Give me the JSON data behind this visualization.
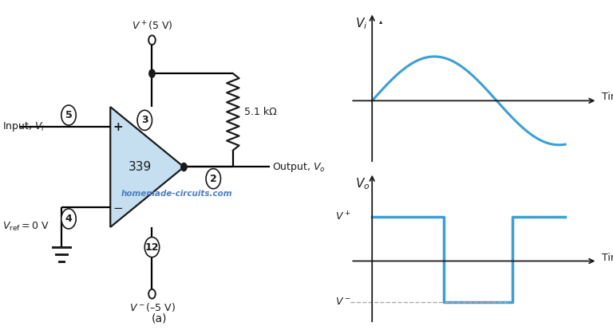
{
  "bg_color": "#ffffff",
  "blue_color": "#3d9fd4",
  "triangle_color": "#c5dff0",
  "dark_color": "#1a1a1a",
  "circuit_label": "339",
  "watermark": "homemade-circuits.com",
  "label_a": "(a)",
  "pin5": "5",
  "pin3": "3",
  "pin2": "2",
  "pin4": "4",
  "pin12": "12",
  "resistor_label": "5.1 kΩ",
  "time_label": "Time",
  "watermark_color": "#4a80c4"
}
